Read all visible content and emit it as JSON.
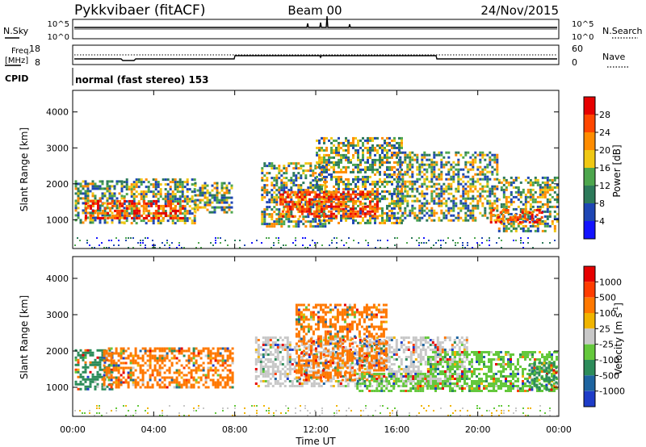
{
  "header": {
    "station": "Pykkvibaer (fitACF)",
    "beam": "Beam 00",
    "date": "24/Nov/2015"
  },
  "panels": {
    "nsky": {
      "left_label": "N.Sky",
      "right_label": "N.Search",
      "left_ticks": [
        "10^5",
        "10^0"
      ],
      "right_ticks": [
        "10^5",
        "10^0"
      ]
    },
    "freq": {
      "left_label_1": "Freq.",
      "left_label_2": "[MHz]",
      "right_label": "Nave",
      "left_ticks": [
        "18",
        "8"
      ],
      "right_ticks": [
        "60",
        "0"
      ]
    },
    "cpid": {
      "label": "CPID",
      "text": "normal (fast stereo) 153"
    }
  },
  "chart_data": [
    {
      "type": "heatmap",
      "name": "power",
      "ylabel": "Slant Range [km]",
      "ylim": [
        200,
        4600
      ],
      "yticks": [
        "1000",
        "2000",
        "3000",
        "4000"
      ],
      "yticks_values": [
        1000,
        2000,
        3000,
        4000
      ],
      "xlim": [
        0,
        24
      ],
      "colorbar": {
        "label": "Power [dB]",
        "ticks": [
          "4",
          "8",
          "12",
          "16",
          "20",
          "24",
          "28"
        ],
        "colors": [
          "#1414ff",
          "#1e46b4",
          "#2d7a5a",
          "#4da64d",
          "#f0c814",
          "#ff8c00",
          "#ff4600",
          "#e60000"
        ]
      },
      "regions": [
        {
          "t0": 0.1,
          "t1": 2.5,
          "r0": 950,
          "r1": 2100
        },
        {
          "t0": 2.5,
          "t1": 6.0,
          "r0": 900,
          "r1": 2150
        },
        {
          "t0": 6.0,
          "t1": 7.9,
          "r0": 1200,
          "r1": 2050
        },
        {
          "t0": 9.3,
          "t1": 12.5,
          "r0": 800,
          "r1": 2600
        },
        {
          "t0": 12.0,
          "t1": 16.2,
          "r0": 900,
          "r1": 3300
        },
        {
          "t0": 16.0,
          "t1": 21.0,
          "r0": 1000,
          "r1": 2900
        },
        {
          "t0": 21.0,
          "t1": 23.9,
          "r0": 700,
          "r1": 2200
        }
      ],
      "hot_regions": [
        {
          "t0": 0.6,
          "t1": 5.5,
          "r0": 1050,
          "r1": 1550
        },
        {
          "t0": 10.2,
          "t1": 15.0,
          "r0": 1100,
          "r1": 1800
        },
        {
          "t0": 20.6,
          "t1": 23.2,
          "r0": 950,
          "r1": 1300
        }
      ]
    },
    {
      "type": "heatmap",
      "name": "velocity",
      "ylabel": "Slant Range [km]",
      "ylim": [
        200,
        4600
      ],
      "yticks": [
        "1000",
        "2000",
        "3000",
        "4000"
      ],
      "yticks_values": [
        1000,
        2000,
        3000,
        4000
      ],
      "xlim": [
        0,
        24
      ],
      "xticks": [
        "00:00",
        "04:00",
        "08:00",
        "12:00",
        "16:00",
        "20:00",
        "00:00"
      ],
      "xticks_values": [
        0,
        4,
        8,
        12,
        16,
        20,
        24
      ],
      "xlabel": "Time UT",
      "colorbar": {
        "label": "Velocity [m s",
        "label_sup": "-1",
        "label_end": "]",
        "ticks": [
          "1000",
          "500",
          "100",
          "25",
          "-25",
          "-100",
          "-500",
          "-1000"
        ],
        "colors": [
          "#1e3cc8",
          "#1e64a0",
          "#2d8c5a",
          "#64c83c",
          "#c8c8c8",
          "#f0b400",
          "#ff7800",
          "#ff3c00",
          "#e60000"
        ]
      },
      "regions": [
        {
          "t0": 0.1,
          "t1": 2.0,
          "r0": 950,
          "r1": 2050,
          "color": "#2d8c5a"
        },
        {
          "t0": 1.5,
          "t1": 7.9,
          "r0": 1000,
          "r1": 2100,
          "color": "#ff7800"
        },
        {
          "t0": 9.0,
          "t1": 19.5,
          "r0": 1000,
          "r1": 2400,
          "color": "#c8c8c8"
        },
        {
          "t0": 11.0,
          "t1": 15.5,
          "r0": 1200,
          "r1": 3300,
          "color": "#ff7800"
        },
        {
          "t0": 14.0,
          "t1": 17.5,
          "r0": 900,
          "r1": 1400,
          "color": "#64c83c"
        },
        {
          "t0": 17.5,
          "t1": 23.9,
          "r0": 900,
          "r1": 2000,
          "color": "#64c83c"
        },
        {
          "t0": 22.5,
          "t1": 23.9,
          "r0": 900,
          "r1": 1700,
          "color": "#2d8c5a"
        }
      ]
    }
  ]
}
